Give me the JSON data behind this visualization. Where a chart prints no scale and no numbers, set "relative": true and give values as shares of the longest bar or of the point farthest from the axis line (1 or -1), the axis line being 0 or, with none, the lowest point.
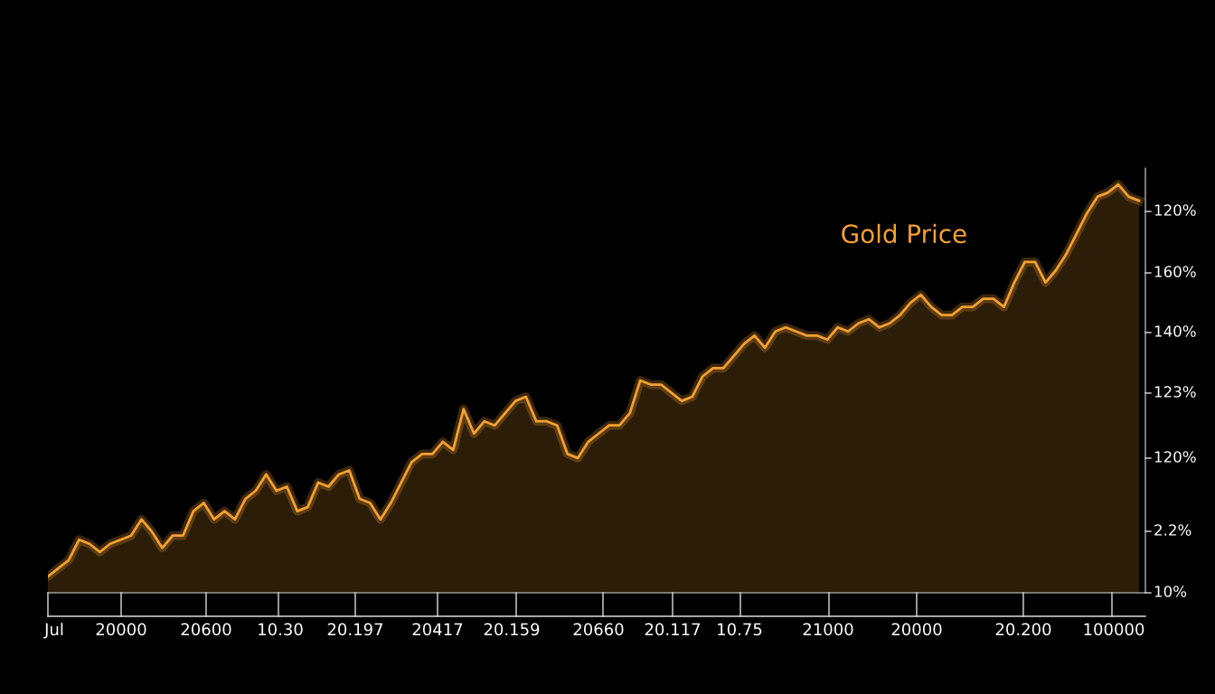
{
  "chart_data": {
    "type": "area",
    "relative": true,
    "categories": [
      null,
      null,
      null,
      null,
      null,
      null,
      null,
      null,
      null,
      null,
      null,
      null,
      null,
      null,
      null,
      null,
      null,
      null,
      null,
      null,
      null,
      null,
      null,
      null,
      null,
      null,
      null,
      null,
      null,
      null,
      null,
      null,
      null,
      null,
      null,
      null,
      null,
      null,
      null,
      null,
      null,
      null,
      null,
      null,
      null,
      null,
      null,
      null,
      null,
      null,
      null,
      null,
      null,
      null,
      null,
      null,
      null,
      null,
      null,
      null,
      null,
      null,
      null,
      null,
      null,
      null,
      null,
      null,
      null,
      null,
      null,
      null,
      null,
      null,
      null,
      null,
      null,
      null,
      null,
      null,
      null,
      null,
      null,
      null,
      null,
      null,
      null,
      null,
      null,
      null,
      null,
      null,
      null,
      null,
      null,
      null,
      null,
      null,
      null,
      null,
      null,
      null,
      null,
      null,
      null,
      null
    ],
    "series": [
      {
        "name": "Gold Price",
        "color": "#f5a030",
        "values": [
          0.04,
          0.06,
          0.08,
          0.13,
          0.12,
          0.1,
          0.12,
          0.13,
          0.14,
          0.18,
          0.15,
          0.11,
          0.14,
          0.14,
          0.2,
          0.22,
          0.18,
          0.2,
          0.18,
          0.23,
          0.25,
          0.29,
          0.25,
          0.26,
          0.2,
          0.21,
          0.27,
          0.26,
          0.29,
          0.3,
          0.23,
          0.22,
          0.18,
          0.22,
          0.27,
          0.32,
          0.34,
          0.34,
          0.37,
          0.35,
          0.45,
          0.39,
          0.42,
          0.41,
          0.44,
          0.47,
          0.48,
          0.42,
          0.42,
          0.41,
          0.34,
          0.33,
          0.37,
          0.39,
          0.41,
          0.41,
          0.44,
          0.52,
          0.51,
          0.51,
          0.49,
          0.47,
          0.48,
          0.53,
          0.55,
          0.55,
          0.58,
          0.61,
          0.63,
          0.6,
          0.64,
          0.65,
          0.64,
          0.63,
          0.63,
          0.62,
          0.65,
          0.64,
          0.66,
          0.67,
          0.65,
          0.66,
          0.68,
          0.71,
          0.73,
          0.7,
          0.68,
          0.68,
          0.7,
          0.7,
          0.72,
          0.72,
          0.7,
          0.76,
          0.81,
          0.81,
          0.76,
          0.79,
          0.83,
          0.88,
          0.93,
          0.97,
          0.98,
          1,
          0.97,
          0.96
        ]
      }
    ],
    "annotations": [
      "Jul",
      "20000",
      "20600",
      "10.30",
      "20.197",
      "20417",
      "20.159",
      "20660",
      "20.117",
      "10.75",
      "21000",
      "20000",
      "20.200",
      "100000",
      "10%",
      "2.2%",
      "120%",
      "123%",
      "140%",
      "160%",
      "120%"
    ],
    "grid": false,
    "legend": false
  }
}
